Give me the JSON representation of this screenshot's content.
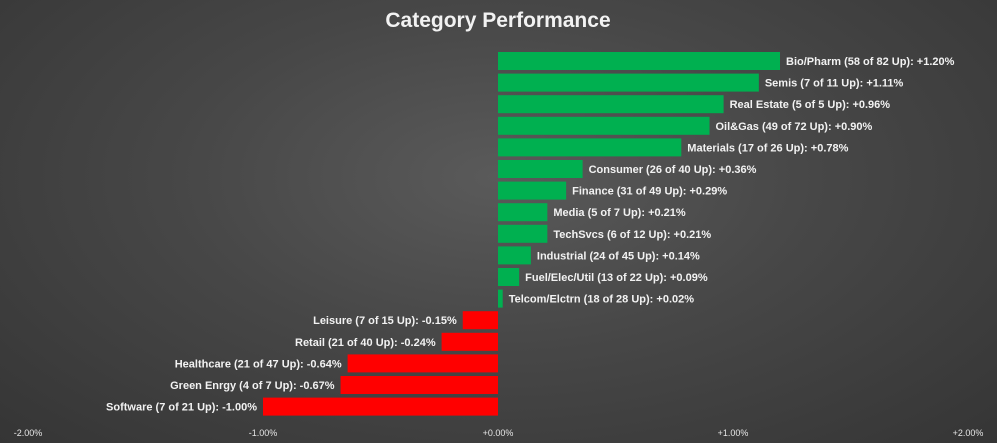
{
  "chart_data": {
    "type": "bar",
    "orientation": "horizontal",
    "title": "Category Performance",
    "xlim": [
      -2.0,
      2.0
    ],
    "x_ticks": [
      -2.0,
      -1.0,
      0.0,
      1.0,
      2.0
    ],
    "x_tick_labels": [
      "-2.00%",
      "-1.00%",
      "+0.00%",
      "+1.00%",
      "+2.00%"
    ],
    "grid": false,
    "positive_color": "#00b050",
    "negative_color": "#ff0000",
    "categories": [
      "Bio/Pharm (58 of 82 Up): +1.20%",
      "Semis (7 of 11 Up): +1.11%",
      "Real Estate (5 of 5 Up): +0.96%",
      "Oil&Gas (49 of 72 Up): +0.90%",
      "Materials (17 of 26 Up): +0.78%",
      "Consumer (26 of 40 Up): +0.36%",
      "Finance (31 of 49 Up): +0.29%",
      "Media (5 of 7 Up): +0.21%",
      "TechSvcs (6 of 12 Up): +0.21%",
      "Industrial (24 of 45 Up): +0.14%",
      "Fuel/Elec/Util (13 of 22 Up): +0.09%",
      "Telcom/Elctrn (18 of 28 Up): +0.02%",
      "Leisure (7 of 15 Up): -0.15%",
      "Retail (21 of 40 Up): -0.24%",
      "Healthcare (21 of 47 Up): -0.64%",
      "Green Enrgy (4 of 7 Up): -0.67%",
      "Software (7 of 21 Up): -1.00%"
    ],
    "values": [
      1.2,
      1.11,
      0.96,
      0.9,
      0.78,
      0.36,
      0.29,
      0.21,
      0.21,
      0.14,
      0.09,
      0.02,
      -0.15,
      -0.24,
      -0.64,
      -0.67,
      -1.0
    ]
  }
}
